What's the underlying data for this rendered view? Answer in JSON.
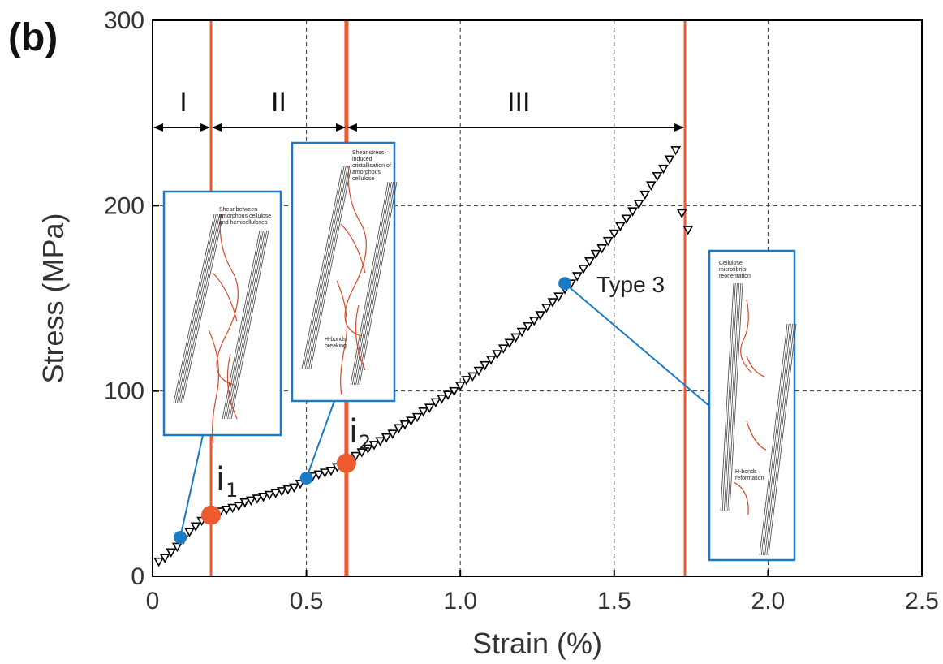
{
  "chart_data": {
    "type": "scatter",
    "panel_label": "(b)",
    "xlabel": "Strain (%)",
    "ylabel": "Stress (MPa)",
    "xlim": [
      0,
      2.5
    ],
    "ylim": [
      0,
      300
    ],
    "x_ticks": [
      0,
      0.5,
      1.0,
      1.5,
      2.0,
      2.5
    ],
    "x_tick_labels": [
      "0",
      "0.5",
      "1.0",
      "1.5",
      "2.0",
      "2.5"
    ],
    "y_ticks": [
      0,
      100,
      200,
      300
    ],
    "y_tick_labels": [
      "0",
      "100",
      "200",
      "300"
    ],
    "grid": true,
    "series": [
      {
        "marker": "triangle-down",
        "x": [
          0.02,
          0.04,
          0.06,
          0.08,
          0.1,
          0.12,
          0.14,
          0.16,
          0.18,
          0.2,
          0.22,
          0.24,
          0.26,
          0.28,
          0.3,
          0.32,
          0.34,
          0.36,
          0.38,
          0.4,
          0.42,
          0.44,
          0.46,
          0.48,
          0.5,
          0.52,
          0.54,
          0.56,
          0.58,
          0.6,
          0.62,
          0.64,
          0.66,
          0.68,
          0.7,
          0.72,
          0.74,
          0.76,
          0.78,
          0.8,
          0.82,
          0.84,
          0.86,
          0.88,
          0.9,
          0.92,
          0.94,
          0.96,
          0.98,
          1.0,
          1.02,
          1.04,
          1.06,
          1.08,
          1.1,
          1.12,
          1.14,
          1.16,
          1.18,
          1.2,
          1.22,
          1.24,
          1.26,
          1.28,
          1.3,
          1.32,
          1.34,
          1.36,
          1.38,
          1.4,
          1.42,
          1.44,
          1.46,
          1.48,
          1.5,
          1.52,
          1.54,
          1.56,
          1.58,
          1.6,
          1.62,
          1.64,
          1.66,
          1.68,
          1.7,
          1.72,
          1.74
        ],
        "y": [
          8,
          10,
          13,
          16,
          20,
          24,
          27,
          30,
          32,
          33,
          35,
          36,
          37,
          38,
          40,
          41,
          42,
          43,
          44,
          45,
          46,
          47,
          48,
          50,
          52,
          54,
          55,
          56,
          57,
          59,
          61,
          63,
          65,
          67,
          69,
          71,
          73,
          75,
          77,
          80,
          82,
          84,
          86,
          89,
          91,
          94,
          96,
          98,
          100,
          103,
          106,
          108,
          111,
          114,
          117,
          120,
          123,
          126,
          129,
          132,
          135,
          138,
          141,
          145,
          148,
          151,
          155,
          158,
          162,
          166,
          170,
          174,
          177,
          181,
          185,
          189,
          193,
          197,
          201,
          206,
          211,
          216,
          220,
          225,
          230,
          196,
          187
        ]
      }
    ],
    "region_boundaries": [
      0.19,
      0.63,
      1.73
    ],
    "region_labels": [
      {
        "text": "I",
        "x": 0.1
      },
      {
        "text": "II",
        "x": 0.41
      },
      {
        "text": "III",
        "x": 1.19
      }
    ],
    "inflection_points": [
      {
        "label": "i",
        "sub": "1",
        "x": 0.19,
        "y": 33
      },
      {
        "label": "i",
        "sub": "2",
        "x": 0.63,
        "y": 61
      }
    ],
    "callout_points": [
      {
        "x": 0.09,
        "y": 21
      },
      {
        "x": 0.5,
        "y": 53
      },
      {
        "x": 1.34,
        "y": 158
      }
    ],
    "annotations": [
      {
        "text": "Type 3",
        "x": 1.45,
        "y": 158
      }
    ],
    "insets": [
      {
        "texts": [
          "Shear between",
          "amorphous cellulose",
          "and hemicelluloses"
        ]
      },
      {
        "texts": [
          "Shear stress-",
          "induced",
          "cristallisation of",
          "amorphous",
          "cellulose",
          "H-bonds",
          "breaking"
        ]
      },
      {
        "texts": [
          "Cellulose",
          "microfibrils",
          "reorientation",
          "H-bonds",
          "reformation"
        ]
      }
    ],
    "colors": {
      "boundary": "#ee5a2f",
      "inflection": "#ee5a2f",
      "callout": "#1a7bc4",
      "inset_border": "#1a7bc4",
      "marker": "#000000",
      "grid": "#333333"
    }
  }
}
